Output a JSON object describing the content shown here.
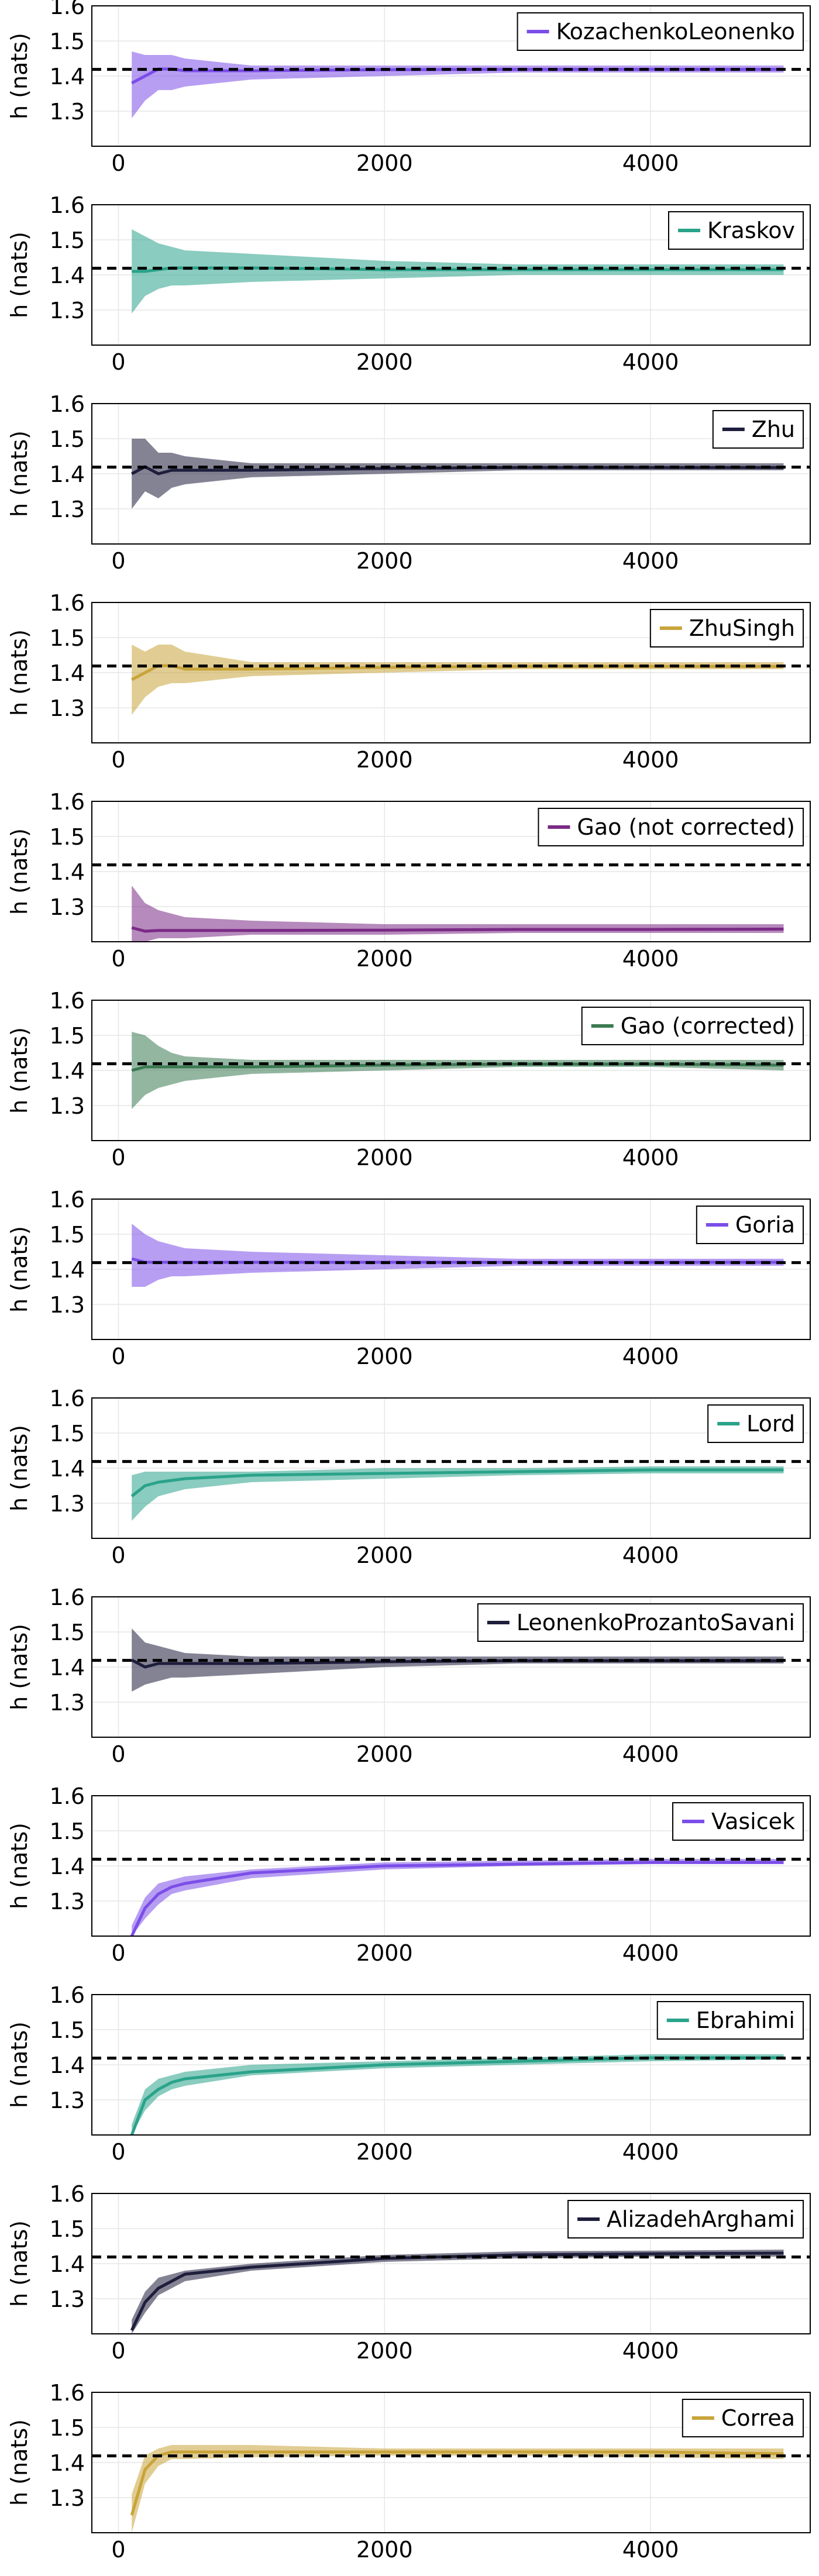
{
  "chart_data": {
    "type": "line",
    "shared": {
      "ylabel": "h (nats)",
      "xlim": [
        -200,
        5200
      ],
      "ylim": [
        1.2,
        1.6
      ],
      "xticks": [
        0,
        2000,
        4000
      ],
      "yticks": [
        1.3,
        1.4,
        1.5,
        1.6
      ],
      "ytick_labels": [
        "1.3",
        "1.4",
        "1.5",
        "1.6"
      ],
      "xtick_labels": [
        "0",
        "2000",
        "4000"
      ],
      "reference_value": 1.419,
      "reference_style": "dashed black",
      "grid": true,
      "legend_placement": "top-right",
      "x": [
        100,
        200,
        300,
        400,
        500,
        1000,
        2000,
        3000,
        4000,
        5000
      ]
    },
    "panels": [
      {
        "name": "KozachenkoLeonenko",
        "color": "#7b4ee8",
        "mean": [
          1.38,
          1.4,
          1.42,
          1.42,
          1.415,
          1.415,
          1.418,
          1.419,
          1.419,
          1.419
        ],
        "lower": [
          1.28,
          1.33,
          1.36,
          1.36,
          1.37,
          1.39,
          1.4,
          1.41,
          1.41,
          1.41
        ],
        "upper": [
          1.47,
          1.46,
          1.46,
          1.46,
          1.45,
          1.43,
          1.43,
          1.43,
          1.43,
          1.43
        ]
      },
      {
        "name": "Kraskov",
        "color": "#2aa38a",
        "mean": [
          1.41,
          1.41,
          1.415,
          1.42,
          1.42,
          1.42,
          1.415,
          1.415,
          1.415,
          1.415
        ],
        "lower": [
          1.29,
          1.34,
          1.36,
          1.37,
          1.37,
          1.38,
          1.39,
          1.4,
          1.4,
          1.4
        ],
        "upper": [
          1.53,
          1.51,
          1.49,
          1.48,
          1.47,
          1.46,
          1.44,
          1.43,
          1.43,
          1.43
        ]
      },
      {
        "name": "Zhu",
        "color": "#1e1e3c",
        "mean": [
          1.4,
          1.42,
          1.4,
          1.41,
          1.41,
          1.41,
          1.415,
          1.418,
          1.418,
          1.418
        ],
        "lower": [
          1.3,
          1.35,
          1.33,
          1.36,
          1.37,
          1.39,
          1.4,
          1.41,
          1.41,
          1.41
        ],
        "upper": [
          1.5,
          1.5,
          1.46,
          1.46,
          1.45,
          1.43,
          1.43,
          1.43,
          1.43,
          1.43
        ]
      },
      {
        "name": "ZhuSingh",
        "color": "#c8a43a",
        "mean": [
          1.38,
          1.4,
          1.42,
          1.42,
          1.41,
          1.41,
          1.415,
          1.418,
          1.418,
          1.418
        ],
        "lower": [
          1.28,
          1.33,
          1.36,
          1.37,
          1.37,
          1.39,
          1.4,
          1.41,
          1.41,
          1.41
        ],
        "upper": [
          1.48,
          1.46,
          1.48,
          1.48,
          1.46,
          1.43,
          1.43,
          1.43,
          1.43,
          1.43
        ]
      },
      {
        "name": "Gao (not corrected)",
        "color": "#7a2a85",
        "mean": [
          1.24,
          1.23,
          1.232,
          1.232,
          1.232,
          1.232,
          1.233,
          1.235,
          1.235,
          1.236
        ],
        "lower": [
          1.2,
          1.2,
          1.21,
          1.21,
          1.21,
          1.22,
          1.22,
          1.225,
          1.225,
          1.225
        ],
        "upper": [
          1.36,
          1.31,
          1.29,
          1.28,
          1.27,
          1.26,
          1.25,
          1.25,
          1.25,
          1.25
        ]
      },
      {
        "name": "Gao (corrected)",
        "color": "#3b7a52",
        "mean": [
          1.4,
          1.41,
          1.41,
          1.41,
          1.41,
          1.41,
          1.415,
          1.418,
          1.418,
          1.415
        ],
        "lower": [
          1.29,
          1.33,
          1.35,
          1.36,
          1.37,
          1.39,
          1.4,
          1.41,
          1.41,
          1.4
        ],
        "upper": [
          1.51,
          1.5,
          1.47,
          1.45,
          1.44,
          1.43,
          1.43,
          1.43,
          1.43,
          1.43
        ]
      },
      {
        "name": "Goria",
        "color": "#7b4ee8",
        "mean": [
          1.43,
          1.42,
          1.42,
          1.42,
          1.42,
          1.42,
          1.42,
          1.42,
          1.42,
          1.42
        ],
        "lower": [
          1.35,
          1.35,
          1.37,
          1.38,
          1.38,
          1.39,
          1.4,
          1.41,
          1.41,
          1.41
        ],
        "upper": [
          1.53,
          1.5,
          1.48,
          1.47,
          1.46,
          1.45,
          1.44,
          1.43,
          1.43,
          1.43
        ]
      },
      {
        "name": "Lord",
        "color": "#2aa38a",
        "mean": [
          1.32,
          1.35,
          1.36,
          1.365,
          1.37,
          1.38,
          1.385,
          1.39,
          1.395,
          1.395
        ],
        "lower": [
          1.25,
          1.29,
          1.32,
          1.33,
          1.34,
          1.36,
          1.37,
          1.38,
          1.385,
          1.385
        ],
        "upper": [
          1.38,
          1.39,
          1.39,
          1.39,
          1.39,
          1.39,
          1.4,
          1.4,
          1.405,
          1.405
        ]
      },
      {
        "name": "LeonenkoProzantoSavani",
        "color": "#1e1e3c",
        "mean": [
          1.42,
          1.4,
          1.41,
          1.41,
          1.41,
          1.41,
          1.415,
          1.418,
          1.418,
          1.418
        ],
        "lower": [
          1.33,
          1.35,
          1.36,
          1.37,
          1.37,
          1.38,
          1.4,
          1.41,
          1.41,
          1.41
        ],
        "upper": [
          1.51,
          1.47,
          1.46,
          1.45,
          1.44,
          1.43,
          1.43,
          1.43,
          1.43,
          1.43
        ]
      },
      {
        "name": "Vasicek",
        "color": "#7b4ee8",
        "mean": [
          1.2,
          1.28,
          1.32,
          1.34,
          1.35,
          1.38,
          1.4,
          1.405,
          1.41,
          1.41
        ],
        "lower": [
          1.17,
          1.25,
          1.29,
          1.32,
          1.33,
          1.365,
          1.39,
          1.4,
          1.405,
          1.405
        ],
        "upper": [
          1.23,
          1.31,
          1.35,
          1.36,
          1.37,
          1.39,
          1.41,
          1.415,
          1.42,
          1.42
        ]
      },
      {
        "name": "Ebrahimi",
        "color": "#2aa38a",
        "mean": [
          1.2,
          1.3,
          1.33,
          1.35,
          1.36,
          1.38,
          1.4,
          1.41,
          1.42,
          1.42
        ],
        "lower": [
          1.17,
          1.27,
          1.31,
          1.33,
          1.34,
          1.37,
          1.39,
          1.4,
          1.41,
          1.415
        ],
        "upper": [
          1.23,
          1.33,
          1.36,
          1.37,
          1.38,
          1.4,
          1.41,
          1.42,
          1.43,
          1.43
        ]
      },
      {
        "name": "AlizadehArghami",
        "color": "#1e1e3c",
        "mean": [
          1.21,
          1.29,
          1.33,
          1.35,
          1.37,
          1.39,
          1.415,
          1.425,
          1.428,
          1.43
        ],
        "lower": [
          1.18,
          1.26,
          1.31,
          1.33,
          1.35,
          1.38,
          1.405,
          1.415,
          1.42,
          1.42
        ],
        "upper": [
          1.24,
          1.32,
          1.36,
          1.37,
          1.38,
          1.4,
          1.425,
          1.435,
          1.437,
          1.44
        ]
      },
      {
        "name": "Correa",
        "color": "#c8a43a",
        "mean": [
          1.25,
          1.38,
          1.42,
          1.43,
          1.43,
          1.43,
          1.43,
          1.43,
          1.43,
          1.425
        ],
        "lower": [
          1.19,
          1.34,
          1.39,
          1.41,
          1.41,
          1.415,
          1.42,
          1.42,
          1.415,
          1.41
        ],
        "upper": [
          1.31,
          1.42,
          1.44,
          1.45,
          1.45,
          1.45,
          1.44,
          1.44,
          1.44,
          1.44
        ]
      }
    ]
  }
}
